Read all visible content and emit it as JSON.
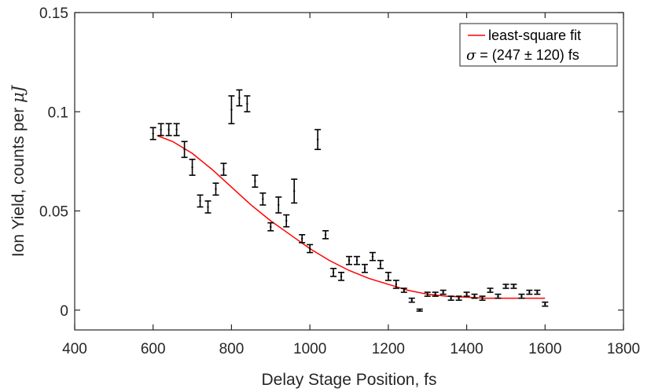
{
  "chart_data": {
    "type": "scatter",
    "title": "",
    "xlabel": "Delay Stage Position, fs",
    "ylabel_prefix": "Ion Yield, counts per ",
    "ylabel_unit": "μJ",
    "xlim": [
      400,
      1800
    ],
    "ylim": [
      -0.01,
      0.15
    ],
    "xticks": [
      400,
      600,
      800,
      1000,
      1200,
      1400,
      1600,
      1800
    ],
    "yticks": [
      0,
      0.05,
      0.1,
      0.15
    ],
    "xtick_labels": [
      "400",
      "600",
      "800",
      "1000",
      "1200",
      "1400",
      "1600",
      "1800"
    ],
    "ytick_labels": [
      "0",
      "0.05",
      "0.1",
      "0.15"
    ],
    "grid": false,
    "legend": {
      "position": "top-right",
      "fit_label": "least-square fit",
      "sigma_symbol": "σ",
      "sigma_text": " = (247 ± 120) fs"
    },
    "colors": {
      "data": "#000000",
      "fit": "#ff0000",
      "axes": "#262626"
    },
    "series": [
      {
        "name": "data",
        "kind": "errorbar",
        "x": [
          600,
          620,
          640,
          660,
          680,
          700,
          720,
          740,
          760,
          780,
          800,
          820,
          840,
          860,
          880,
          900,
          920,
          940,
          960,
          980,
          1000,
          1020,
          1040,
          1060,
          1080,
          1100,
          1120,
          1140,
          1160,
          1180,
          1200,
          1220,
          1240,
          1260,
          1280,
          1300,
          1320,
          1340,
          1360,
          1380,
          1400,
          1420,
          1440,
          1460,
          1480,
          1500,
          1520,
          1540,
          1560,
          1580,
          1600
        ],
        "y": [
          0.089,
          0.091,
          0.091,
          0.091,
          0.081,
          0.072,
          0.055,
          0.052,
          0.061,
          0.071,
          0.101,
          0.107,
          0.104,
          0.065,
          0.056,
          0.042,
          0.053,
          0.045,
          0.06,
          0.036,
          0.031,
          0.086,
          0.038,
          0.019,
          0.017,
          0.025,
          0.025,
          0.021,
          0.027,
          0.023,
          0.017,
          0.013,
          0.01,
          0.005,
          0.0,
          0.008,
          0.008,
          0.009,
          0.006,
          0.006,
          0.008,
          0.007,
          0.006,
          0.01,
          0.007,
          0.012,
          0.012,
          0.007,
          0.009,
          0.009,
          0.003
        ],
        "err": [
          0.003,
          0.003,
          0.003,
          0.003,
          0.004,
          0.004,
          0.003,
          0.003,
          0.003,
          0.003,
          0.007,
          0.004,
          0.004,
          0.003,
          0.003,
          0.002,
          0.004,
          0.003,
          0.006,
          0.002,
          0.002,
          0.005,
          0.002,
          0.002,
          0.002,
          0.002,
          0.002,
          0.002,
          0.002,
          0.002,
          0.002,
          0.002,
          0.001,
          0.001,
          0.0005,
          0.001,
          0.001,
          0.001,
          0.001,
          0.001,
          0.001,
          0.001,
          0.001,
          0.001,
          0.001,
          0.001,
          0.001,
          0.001,
          0.001,
          0.001,
          0.001
        ]
      },
      {
        "name": "least-square fit",
        "kind": "line",
        "x": [
          610,
          650,
          700,
          750,
          800,
          850,
          900,
          950,
          1000,
          1050,
          1100,
          1150,
          1200,
          1250,
          1300,
          1350,
          1400,
          1450,
          1500,
          1550,
          1600
        ],
        "y": [
          0.088,
          0.085,
          0.079,
          0.071,
          0.062,
          0.053,
          0.045,
          0.038,
          0.031,
          0.025,
          0.02,
          0.016,
          0.013,
          0.01,
          0.008,
          0.007,
          0.0065,
          0.006,
          0.006,
          0.006,
          0.006
        ]
      }
    ]
  }
}
